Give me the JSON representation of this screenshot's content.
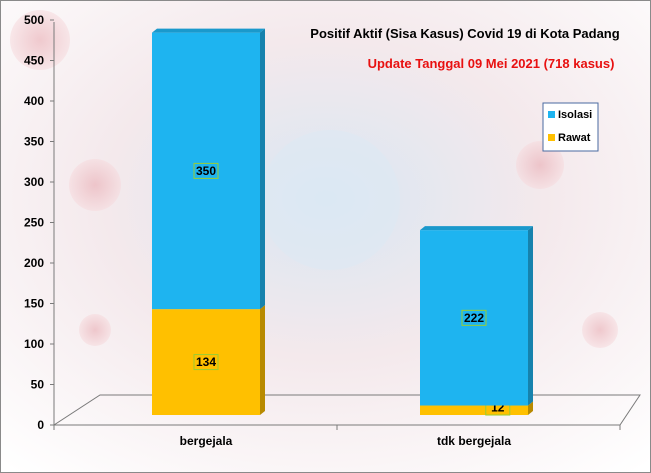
{
  "chart_data": {
    "type": "bar",
    "stacked": true,
    "three_d": true,
    "title": "Positif Aktif  (Sisa Kasus) Covid 19 di Kota Padang",
    "subtitle": "Update Tanggal 09 Mei 2021  (718 kasus)",
    "categories": [
      "bergejala",
      "tdk bergejala"
    ],
    "series": [
      {
        "name": "Rawat",
        "values": [
          134,
          12
        ],
        "color": "#ffc000"
      },
      {
        "name": "Isolasi",
        "values": [
          350,
          222
        ],
        "color": "#1eb4f0"
      }
    ],
    "ylim": [
      0,
      500
    ],
    "yticks": [
      "0",
      "50",
      "100",
      "150",
      "200",
      "250",
      "300",
      "350",
      "400",
      "450",
      "500"
    ],
    "grid": false,
    "legend": {
      "position": "right",
      "order": [
        "Isolasi",
        "Rawat"
      ]
    }
  },
  "colors": {
    "isolasi": "#1eb4f0",
    "rawat": "#ffc000",
    "subtitle": "#e81010",
    "legend_border": "#4a6aa0"
  }
}
